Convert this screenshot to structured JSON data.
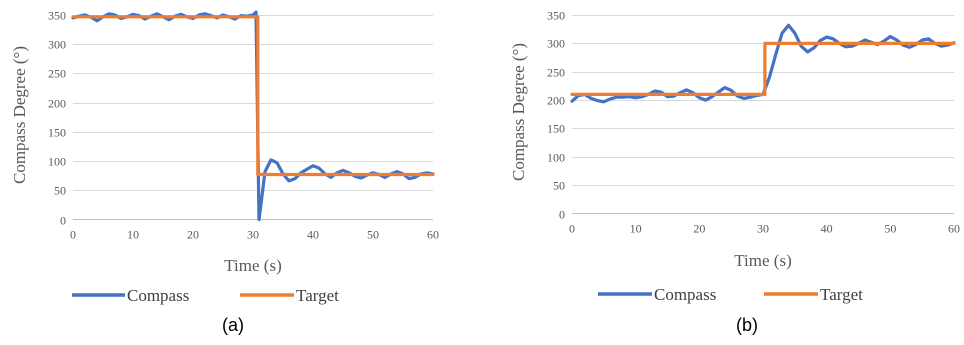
{
  "colors": {
    "compass": "#4472c4",
    "target": "#ed7d31"
  },
  "chart_data": [
    {
      "type": "line",
      "caption": "(a)",
      "xlabel": "Time (s)",
      "ylabel": "Compass Degree (°)",
      "xlim": [
        0,
        60
      ],
      "ylim": [
        0,
        350
      ],
      "x_ticks": [
        0,
        10,
        20,
        30,
        40,
        50,
        60
      ],
      "y_ticks": [
        0,
        50,
        100,
        150,
        200,
        250,
        300,
        350
      ],
      "grid": true,
      "legend_position": "bottom",
      "series": [
        {
          "name": "Compass",
          "x": [
            0,
            1,
            2,
            3,
            4,
            5,
            6,
            7,
            8,
            9,
            10,
            11,
            12,
            13,
            14,
            15,
            16,
            17,
            18,
            19,
            20,
            21,
            22,
            23,
            24,
            25,
            26,
            27,
            28,
            29,
            30,
            30.5,
            31,
            31.5,
            32,
            33,
            34,
            35,
            36,
            37,
            38,
            39,
            40,
            41,
            42,
            43,
            44,
            45,
            46,
            47,
            48,
            49,
            50,
            51,
            52,
            53,
            54,
            55,
            56,
            57,
            58,
            59,
            60
          ],
          "y": [
            345,
            348,
            350,
            346,
            340,
            347,
            352,
            350,
            344,
            347,
            351,
            349,
            343,
            348,
            352,
            347,
            342,
            348,
            351,
            347,
            344,
            350,
            352,
            349,
            345,
            350,
            347,
            343,
            349,
            348,
            350,
            355,
            0,
            40,
            82,
            102,
            97,
            78,
            66,
            70,
            80,
            86,
            92,
            88,
            78,
            72,
            80,
            84,
            80,
            74,
            71,
            76,
            80,
            77,
            72,
            78,
            82,
            78,
            70,
            72,
            78,
            80,
            78
          ]
        },
        {
          "name": "Target",
          "x": [
            0,
            30.8,
            30.8,
            60
          ],
          "y": [
            347,
            347,
            77,
            77
          ]
        }
      ]
    },
    {
      "type": "line",
      "caption": "(b)",
      "xlabel": "Time (s)",
      "ylabel": "Compass Degree (°)",
      "xlim": [
        0,
        60
      ],
      "ylim": [
        0,
        350
      ],
      "x_ticks": [
        0,
        10,
        20,
        30,
        40,
        50,
        60
      ],
      "y_ticks": [
        0,
        50,
        100,
        150,
        200,
        250,
        300,
        350
      ],
      "grid": true,
      "legend_position": "bottom",
      "series": [
        {
          "name": "Compass",
          "x": [
            0,
            1,
            2,
            3,
            4,
            5,
            6,
            7,
            8,
            9,
            10,
            11,
            12,
            13,
            14,
            15,
            16,
            17,
            18,
            19,
            20,
            21,
            22,
            23,
            24,
            25,
            26,
            27,
            28,
            29,
            30,
            31,
            32,
            33,
            34,
            35,
            36,
            37,
            38,
            39,
            40,
            41,
            42,
            43,
            44,
            45,
            46,
            47,
            48,
            49,
            50,
            51,
            52,
            53,
            54,
            55,
            56,
            57,
            58,
            59,
            60
          ],
          "y": [
            198,
            208,
            210,
            203,
            199,
            197,
            202,
            205,
            205,
            206,
            204,
            206,
            210,
            216,
            214,
            206,
            207,
            213,
            218,
            213,
            204,
            200,
            206,
            214,
            222,
            217,
            207,
            203,
            205,
            208,
            210,
            240,
            280,
            318,
            332,
            318,
            295,
            285,
            292,
            305,
            311,
            308,
            300,
            294,
            295,
            300,
            306,
            302,
            298,
            304,
            312,
            306,
            297,
            293,
            298,
            306,
            308,
            300,
            295,
            297,
            301
          ]
        },
        {
          "name": "Target",
          "x": [
            0,
            30.3,
            30.3,
            60
          ],
          "y": [
            210,
            210,
            300,
            300
          ]
        }
      ]
    }
  ]
}
